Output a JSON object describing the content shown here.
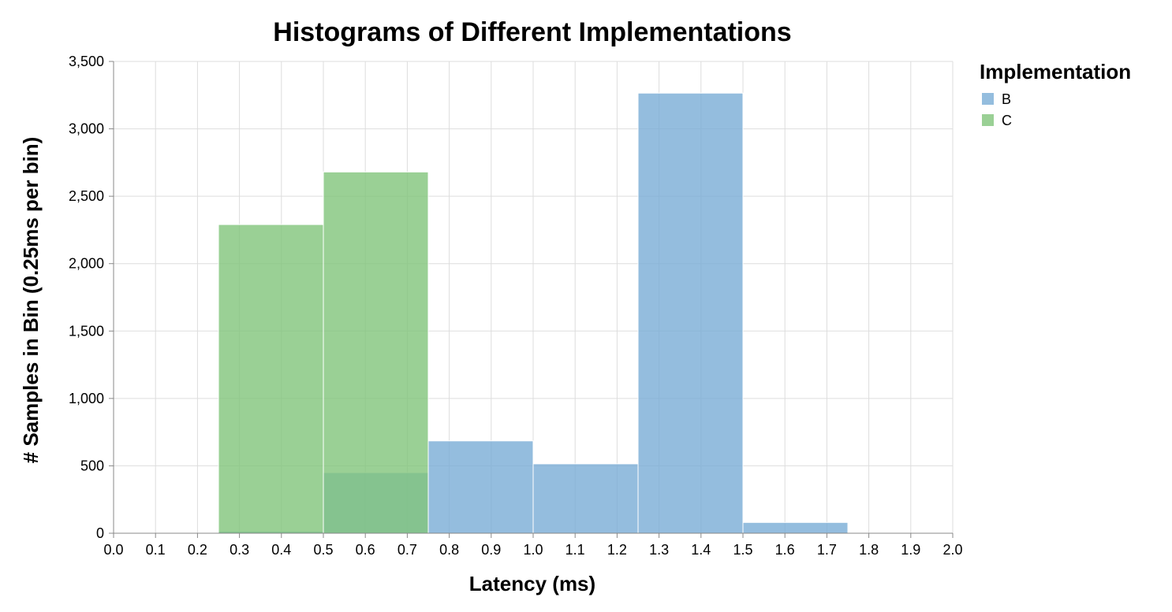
{
  "chart_data": {
    "type": "bar",
    "title": "Histograms of Different Implementations",
    "xlabel": "Latency (ms)",
    "ylabel": "# Samples in Bin (0.25ms per bin)",
    "xlim": [
      0,
      2
    ],
    "ylim": [
      0,
      3500
    ],
    "x_ticks": [
      "0.0",
      "0.1",
      "0.2",
      "0.3",
      "0.4",
      "0.5",
      "0.6",
      "0.7",
      "0.8",
      "0.9",
      "1.0",
      "1.1",
      "1.2",
      "1.3",
      "1.4",
      "1.5",
      "1.6",
      "1.7",
      "1.8",
      "1.9",
      "2.0"
    ],
    "y_ticks": [
      "0",
      "500",
      "1,000",
      "1,500",
      "2,000",
      "2,500",
      "3,000",
      "3,500"
    ],
    "grid": true,
    "legend": {
      "title": "Implementation",
      "position": "right"
    },
    "series": [
      {
        "name": "B",
        "color": "#79add6",
        "bins": [
          {
            "x0": 0.25,
            "x1": 0.5,
            "count": 15
          },
          {
            "x0": 0.5,
            "x1": 0.75,
            "count": 450
          },
          {
            "x0": 0.75,
            "x1": 1.0,
            "count": 685
          },
          {
            "x0": 1.0,
            "x1": 1.25,
            "count": 515
          },
          {
            "x0": 1.25,
            "x1": 1.5,
            "count": 3265
          },
          {
            "x0": 1.5,
            "x1": 1.75,
            "count": 80
          }
        ]
      },
      {
        "name": "C",
        "color": "#81c47a",
        "bins": [
          {
            "x0": 0.25,
            "x1": 0.5,
            "count": 2290
          },
          {
            "x0": 0.5,
            "x1": 0.75,
            "count": 2680
          }
        ]
      }
    ]
  }
}
